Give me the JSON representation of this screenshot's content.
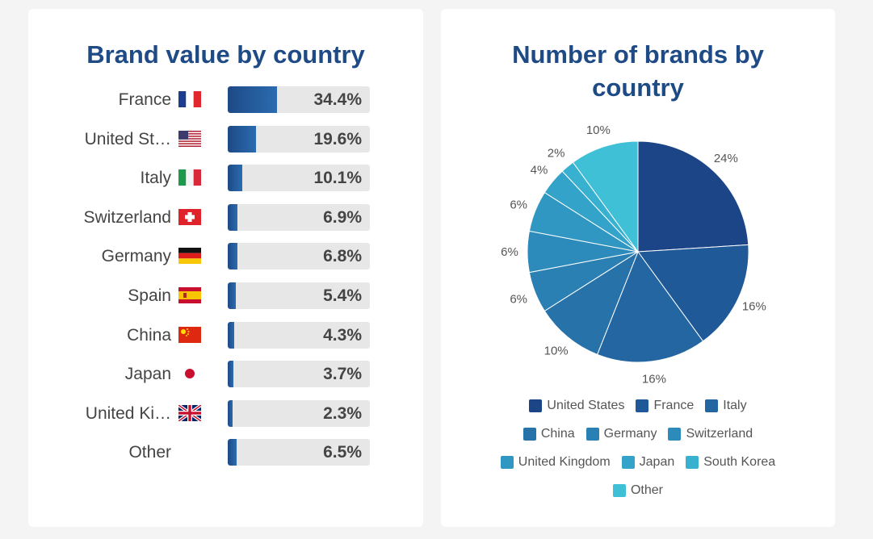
{
  "bar_panel": {
    "title": "Brand value by country",
    "rows": [
      {
        "country": "France",
        "flag": "france-flag",
        "display_value": "34.4%"
      },
      {
        "country": "United St…",
        "flag": "usa-flag",
        "display_value": "19.6%"
      },
      {
        "country": "Italy",
        "flag": "italy-flag",
        "display_value": "10.1%"
      },
      {
        "country": "Switzerland",
        "flag": "switzerland-flag",
        "display_value": "6.9%"
      },
      {
        "country": "Germany",
        "flag": "germany-flag",
        "display_value": "6.8%"
      },
      {
        "country": "Spain",
        "flag": "spain-flag",
        "display_value": "5.4%"
      },
      {
        "country": "China",
        "flag": "china-flag",
        "display_value": "4.3%"
      },
      {
        "country": "Japan",
        "flag": "japan-flag",
        "display_value": "3.7%"
      },
      {
        "country": "United Ki…",
        "flag": "uk-flag",
        "display_value": "2.3%"
      },
      {
        "country": "Other",
        "flag": "",
        "display_value": "6.5%"
      }
    ]
  },
  "pie_panel": {
    "title": "Number of brands by country"
  },
  "chart_data": [
    {
      "type": "bar",
      "title": "Brand value by country",
      "categories": [
        "France",
        "United St…",
        "Italy",
        "Switzerland",
        "Germany",
        "Spain",
        "China",
        "Japan",
        "United Ki…",
        "Other"
      ],
      "values": [
        34.4,
        19.6,
        10.1,
        6.9,
        6.8,
        5.4,
        4.3,
        3.7,
        2.3,
        6.5
      ],
      "unit": "%",
      "bar_color": "#1e4a86",
      "track_color": "#e7e7e7"
    },
    {
      "type": "pie",
      "title": "Number of brands by country",
      "categories": [
        "United States",
        "France",
        "Italy",
        "China",
        "Germany",
        "Switzerland",
        "United Kingdom",
        "Japan",
        "South Korea",
        "Other"
      ],
      "values": [
        24,
        16,
        16,
        10,
        6,
        6,
        6,
        4,
        2,
        10
      ],
      "labels": [
        "24%",
        "16%",
        "16%",
        "10%",
        "6%",
        "6%",
        "6%",
        "4%",
        "2%",
        "10%"
      ],
      "colors": [
        "#1c4587",
        "#1f5998",
        "#2366a2",
        "#2672a9",
        "#2a7fb3",
        "#2d8bbb",
        "#3097c3",
        "#34a3c9",
        "#38b0cf",
        "#40c0d6"
      ],
      "legend_position": "bottom"
    }
  ]
}
